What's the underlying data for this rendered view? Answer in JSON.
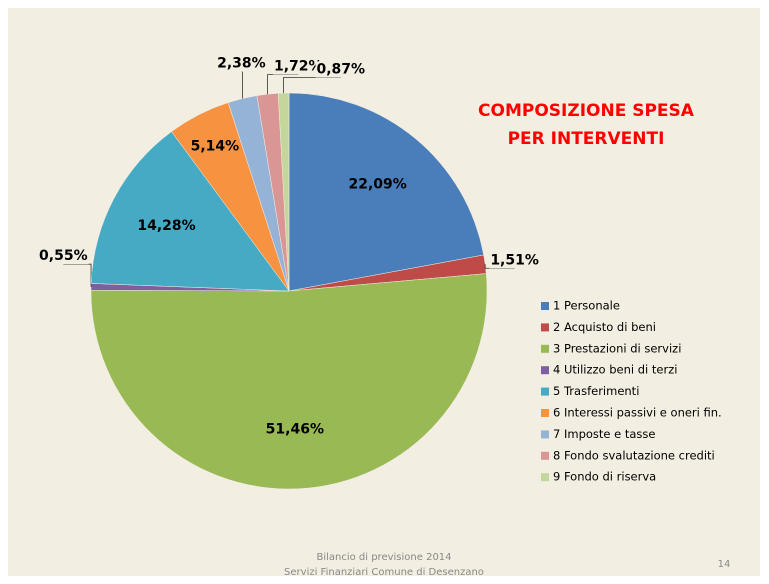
{
  "chart_data": {
    "type": "pie",
    "title": [
      "COMPOSIZIONE SPESA",
      "PER INTERVENTI"
    ],
    "categories": [
      "1 Personale",
      "2 Acquisto di beni",
      "3 Prestazioni di servizi",
      "4 Utilizzo beni di terzi",
      "5 Trasferimenti",
      "6 Interessi passivi e oneri fin.",
      "7 Imposte e tasse",
      "8 Fondo svalutazione crediti",
      "9 Fondo di riserva"
    ],
    "values": [
      22.09,
      1.51,
      51.46,
      0.55,
      14.28,
      5.14,
      2.38,
      1.72,
      0.87
    ],
    "value_labels": [
      "22,09%",
      "1,51%",
      "51,46%",
      "0,55%",
      "14,28%",
      "5,14%",
      "2,38%",
      "1,72%",
      "0,87%"
    ],
    "colors": [
      "#4a7ebb",
      "#be4b48",
      "#98b954",
      "#7d60a0",
      "#46aac5",
      "#f69240",
      "#95b3d7",
      "#d99694",
      "#c3d69b"
    ],
    "legend": "right"
  },
  "footer": {
    "lines": [
      "Bilancio di previsione 2014",
      "Servizi Finanziari Comune di Desenzano"
    ],
    "page": "14"
  }
}
